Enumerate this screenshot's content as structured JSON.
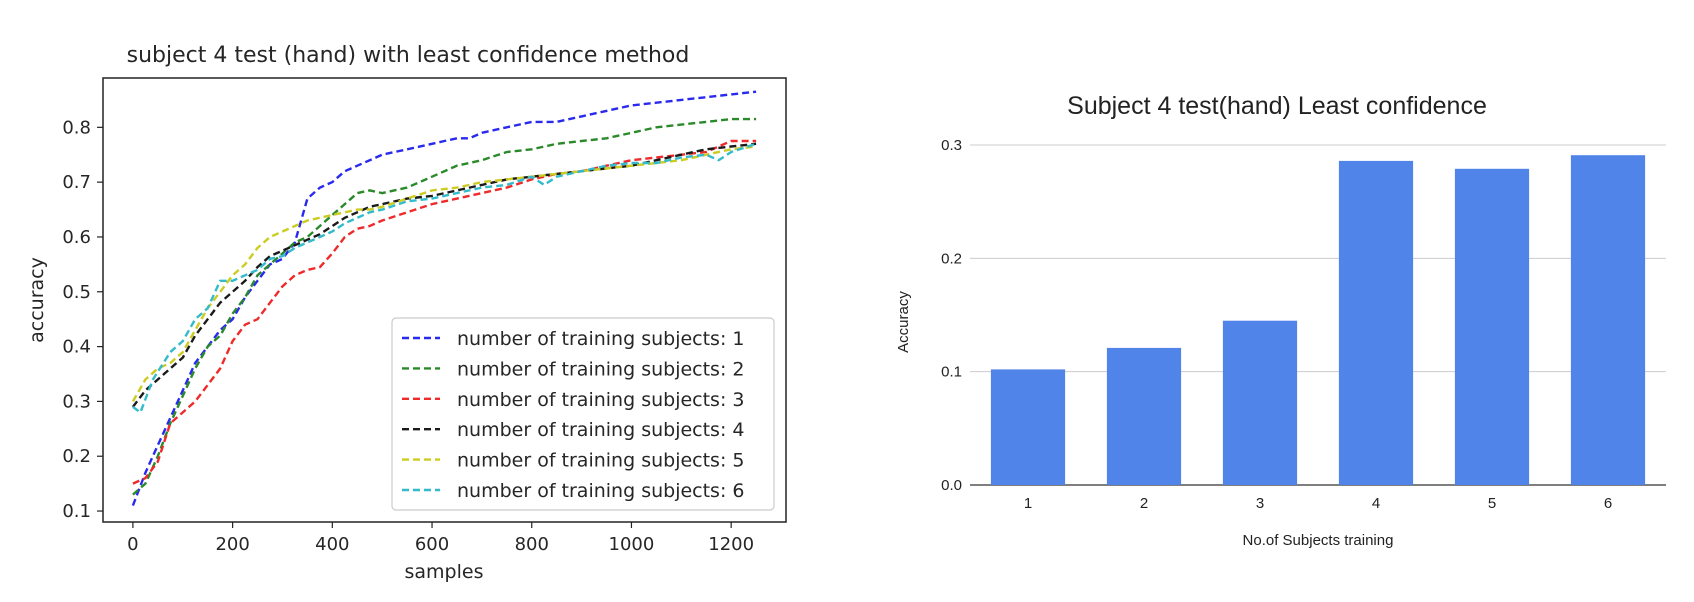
{
  "chart_data": [
    {
      "type": "line",
      "title": "subject 4 test (hand) with least confidence method",
      "xlabel": "samples",
      "ylabel": "accuracy",
      "xlim": [
        -60,
        1310
      ],
      "ylim": [
        0.08,
        0.89
      ],
      "xticks": [
        "0",
        "200",
        "400",
        "600",
        "800",
        "1000",
        "1200"
      ],
      "yticks": [
        "0.1",
        "0.2",
        "0.3",
        "0.4",
        "0.5",
        "0.6",
        "0.7",
        "0.8"
      ],
      "grid": false,
      "legend_position": "lower-right",
      "line_style": "dashed",
      "series": [
        {
          "name": "number of training subjects: 1",
          "color": "#2a2aee",
          "points": [
            [
              0,
              0.11
            ],
            [
              25,
              0.17
            ],
            [
              50,
              0.22
            ],
            [
              75,
              0.27
            ],
            [
              100,
              0.32
            ],
            [
              125,
              0.37
            ],
            [
              150,
              0.4
            ],
            [
              175,
              0.43
            ],
            [
              200,
              0.45
            ],
            [
              225,
              0.49
            ],
            [
              250,
              0.52
            ],
            [
              275,
              0.55
            ],
            [
              300,
              0.56
            ],
            [
              325,
              0.59
            ],
            [
              350,
              0.67
            ],
            [
              375,
              0.69
            ],
            [
              400,
              0.7
            ],
            [
              425,
              0.72
            ],
            [
              450,
              0.73
            ],
            [
              500,
              0.75
            ],
            [
              550,
              0.76
            ],
            [
              600,
              0.77
            ],
            [
              625,
              0.775
            ],
            [
              650,
              0.78
            ],
            [
              675,
              0.78
            ],
            [
              700,
              0.79
            ],
            [
              750,
              0.8
            ],
            [
              800,
              0.81
            ],
            [
              850,
              0.81
            ],
            [
              900,
              0.82
            ],
            [
              950,
              0.83
            ],
            [
              1000,
              0.84
            ],
            [
              1050,
              0.845
            ],
            [
              1100,
              0.85
            ],
            [
              1150,
              0.855
            ],
            [
              1200,
              0.86
            ],
            [
              1250,
              0.865
            ]
          ]
        },
        {
          "name": "number of training subjects: 2",
          "color": "#2a8a2a",
          "points": [
            [
              0,
              0.13
            ],
            [
              25,
              0.15
            ],
            [
              50,
              0.2
            ],
            [
              75,
              0.26
            ],
            [
              100,
              0.31
            ],
            [
              125,
              0.36
            ],
            [
              150,
              0.4
            ],
            [
              175,
              0.42
            ],
            [
              200,
              0.46
            ],
            [
              225,
              0.49
            ],
            [
              250,
              0.53
            ],
            [
              275,
              0.55
            ],
            [
              300,
              0.57
            ],
            [
              325,
              0.59
            ],
            [
              350,
              0.6
            ],
            [
              375,
              0.62
            ],
            [
              400,
              0.64
            ],
            [
              425,
              0.66
            ],
            [
              450,
              0.68
            ],
            [
              475,
              0.685
            ],
            [
              500,
              0.68
            ],
            [
              550,
              0.69
            ],
            [
              600,
              0.71
            ],
            [
              650,
              0.73
            ],
            [
              700,
              0.74
            ],
            [
              750,
              0.755
            ],
            [
              800,
              0.76
            ],
            [
              850,
              0.77
            ],
            [
              900,
              0.775
            ],
            [
              950,
              0.78
            ],
            [
              1000,
              0.79
            ],
            [
              1050,
              0.8
            ],
            [
              1100,
              0.805
            ],
            [
              1150,
              0.81
            ],
            [
              1200,
              0.815
            ],
            [
              1250,
              0.815
            ]
          ]
        },
        {
          "name": "number of training subjects: 3",
          "color": "#ee2a2a",
          "points": [
            [
              0,
              0.15
            ],
            [
              25,
              0.16
            ],
            [
              50,
              0.19
            ],
            [
              75,
              0.26
            ],
            [
              100,
              0.28
            ],
            [
              125,
              0.3
            ],
            [
              150,
              0.33
            ],
            [
              175,
              0.36
            ],
            [
              200,
              0.41
            ],
            [
              225,
              0.44
            ],
            [
              250,
              0.45
            ],
            [
              275,
              0.48
            ],
            [
              300,
              0.51
            ],
            [
              325,
              0.53
            ],
            [
              350,
              0.54
            ],
            [
              375,
              0.545
            ],
            [
              400,
              0.57
            ],
            [
              425,
              0.6
            ],
            [
              450,
              0.615
            ],
            [
              475,
              0.62
            ],
            [
              500,
              0.63
            ],
            [
              550,
              0.645
            ],
            [
              600,
              0.66
            ],
            [
              650,
              0.67
            ],
            [
              700,
              0.68
            ],
            [
              750,
              0.69
            ],
            [
              800,
              0.705
            ],
            [
              850,
              0.715
            ],
            [
              900,
              0.72
            ],
            [
              950,
              0.73
            ],
            [
              1000,
              0.74
            ],
            [
              1050,
              0.745
            ],
            [
              1100,
              0.75
            ],
            [
              1150,
              0.755
            ],
            [
              1200,
              0.775
            ],
            [
              1250,
              0.775
            ]
          ]
        },
        {
          "name": "number of training subjects: 4",
          "color": "#1a1a1a",
          "points": [
            [
              0,
              0.29
            ],
            [
              25,
              0.32
            ],
            [
              50,
              0.34
            ],
            [
              75,
              0.36
            ],
            [
              100,
              0.38
            ],
            [
              125,
              0.42
            ],
            [
              150,
              0.45
            ],
            [
              175,
              0.48
            ],
            [
              200,
              0.5
            ],
            [
              225,
              0.52
            ],
            [
              250,
              0.545
            ],
            [
              275,
              0.565
            ],
            [
              300,
              0.575
            ],
            [
              325,
              0.585
            ],
            [
              350,
              0.595
            ],
            [
              375,
              0.605
            ],
            [
              400,
              0.62
            ],
            [
              425,
              0.635
            ],
            [
              450,
              0.645
            ],
            [
              475,
              0.655
            ],
            [
              500,
              0.66
            ],
            [
              550,
              0.67
            ],
            [
              600,
              0.675
            ],
            [
              650,
              0.685
            ],
            [
              700,
              0.695
            ],
            [
              750,
              0.705
            ],
            [
              800,
              0.71
            ],
            [
              850,
              0.715
            ],
            [
              900,
              0.72
            ],
            [
              950,
              0.725
            ],
            [
              1000,
              0.73
            ],
            [
              1050,
              0.74
            ],
            [
              1100,
              0.75
            ],
            [
              1150,
              0.76
            ],
            [
              1200,
              0.765
            ],
            [
              1250,
              0.77
            ]
          ]
        },
        {
          "name": "number of training subjects: 5",
          "color": "#cccc22",
          "points": [
            [
              0,
              0.3
            ],
            [
              25,
              0.34
            ],
            [
              50,
              0.36
            ],
            [
              75,
              0.37
            ],
            [
              100,
              0.39
            ],
            [
              125,
              0.43
            ],
            [
              150,
              0.47
            ],
            [
              175,
              0.5
            ],
            [
              200,
              0.53
            ],
            [
              225,
              0.55
            ],
            [
              250,
              0.58
            ],
            [
              275,
              0.6
            ],
            [
              300,
              0.61
            ],
            [
              325,
              0.62
            ],
            [
              350,
              0.63
            ],
            [
              375,
              0.635
            ],
            [
              400,
              0.64
            ],
            [
              425,
              0.645
            ],
            [
              450,
              0.65
            ],
            [
              475,
              0.65
            ],
            [
              500,
              0.655
            ],
            [
              550,
              0.67
            ],
            [
              600,
              0.685
            ],
            [
              650,
              0.69
            ],
            [
              700,
              0.7
            ],
            [
              750,
              0.705
            ],
            [
              800,
              0.71
            ],
            [
              850,
              0.715
            ],
            [
              900,
              0.72
            ],
            [
              950,
              0.725
            ],
            [
              1000,
              0.73
            ],
            [
              1050,
              0.735
            ],
            [
              1100,
              0.74
            ],
            [
              1150,
              0.75
            ],
            [
              1200,
              0.76
            ],
            [
              1250,
              0.765
            ]
          ]
        },
        {
          "name": "number of training subjects: 6",
          "color": "#33bbcc",
          "points": [
            [
              0,
              0.29
            ],
            [
              15,
              0.28
            ],
            [
              40,
              0.34
            ],
            [
              75,
              0.39
            ],
            [
              100,
              0.41
            ],
            [
              125,
              0.45
            ],
            [
              150,
              0.47
            ],
            [
              175,
              0.52
            ],
            [
              200,
              0.52
            ],
            [
              225,
              0.53
            ],
            [
              250,
              0.54
            ],
            [
              275,
              0.56
            ],
            [
              300,
              0.565
            ],
            [
              325,
              0.58
            ],
            [
              350,
              0.59
            ],
            [
              375,
              0.6
            ],
            [
              400,
              0.61
            ],
            [
              425,
              0.625
            ],
            [
              450,
              0.635
            ],
            [
              475,
              0.645
            ],
            [
              500,
              0.65
            ],
            [
              550,
              0.665
            ],
            [
              600,
              0.67
            ],
            [
              650,
              0.68
            ],
            [
              700,
              0.69
            ],
            [
              750,
              0.695
            ],
            [
              800,
              0.71
            ],
            [
              825,
              0.695
            ],
            [
              850,
              0.71
            ],
            [
              900,
              0.72
            ],
            [
              950,
              0.73
            ],
            [
              1000,
              0.735
            ],
            [
              1050,
              0.735
            ],
            [
              1100,
              0.745
            ],
            [
              1150,
              0.75
            ],
            [
              1175,
              0.74
            ],
            [
              1200,
              0.755
            ],
            [
              1250,
              0.77
            ]
          ]
        }
      ]
    },
    {
      "type": "bar",
      "title": "Subject 4 test(hand) Least confidence",
      "xlabel": "No.of Subjects training",
      "ylabel": "Accuracy",
      "categories": [
        "1",
        "2",
        "3",
        "4",
        "5",
        "6"
      ],
      "values": [
        0.102,
        0.121,
        0.145,
        0.286,
        0.279,
        0.291
      ],
      "ylim": [
        0,
        0.3
      ],
      "yticks": [
        "0.0",
        "0.1",
        "0.2",
        "0.3"
      ],
      "grid": true,
      "bar_color": "#5084e8"
    }
  ]
}
